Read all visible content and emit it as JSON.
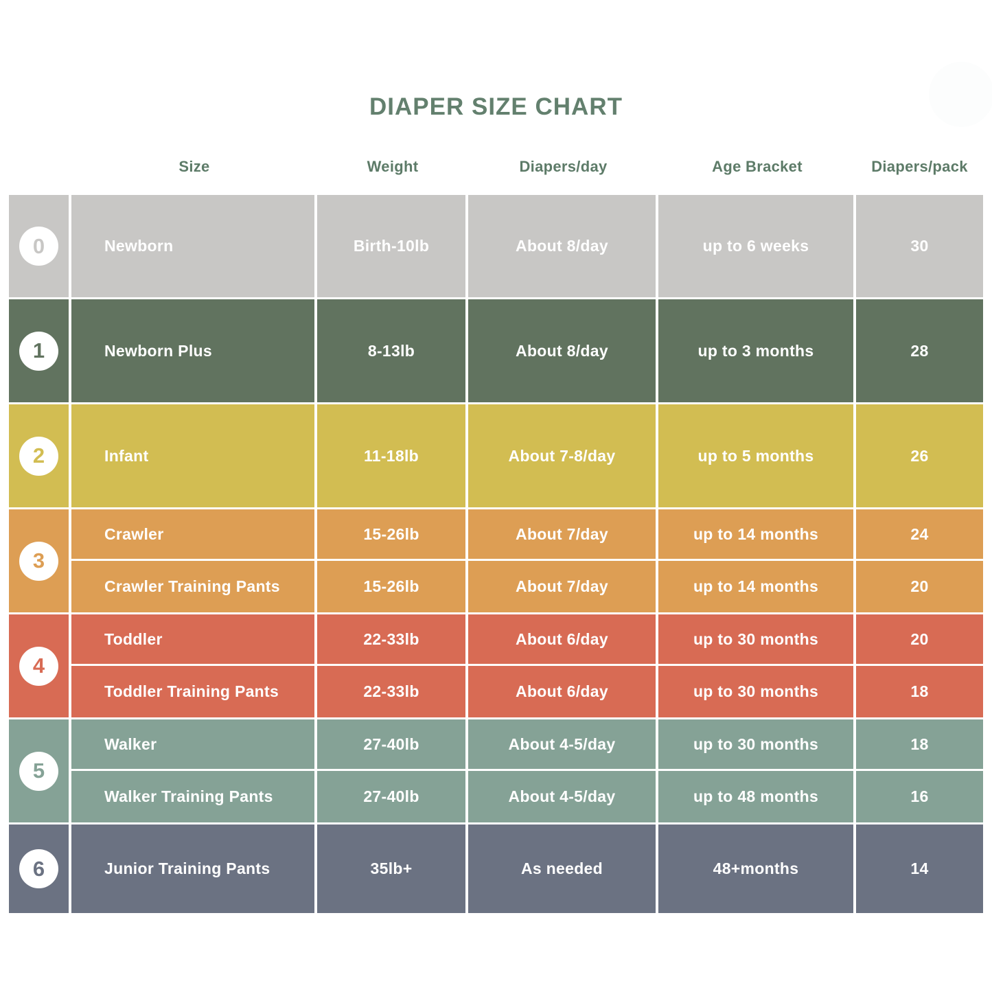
{
  "page": {
    "title": "DIAPER SIZE CHART",
    "title_color": "#63806e",
    "header_color": "#5d7b68",
    "background": "#ffffff",
    "corner_circle_color": "#fcfdfd"
  },
  "chart_data": {
    "type": "table",
    "title": "DIAPER SIZE CHART",
    "headers": [
      "Size",
      "Weight",
      "Diapers/day",
      "Age Bracket",
      "Diapers/pack"
    ],
    "groups": [
      {
        "size": "0",
        "color": "#c8c7c5",
        "rows": [
          {
            "name": "Newborn",
            "weight": "Birth-10lb",
            "per_day": "About 8/day",
            "age": "up to 6 weeks",
            "per_pack": "30"
          }
        ]
      },
      {
        "size": "1",
        "color": "#61735f",
        "rows": [
          {
            "name": "Newborn Plus",
            "weight": "8-13lb",
            "per_day": "About 8/day",
            "age": "up to 3 months",
            "per_pack": "28"
          }
        ]
      },
      {
        "size": "2",
        "color": "#d2bd52",
        "rows": [
          {
            "name": "Infant",
            "weight": "11-18lb",
            "per_day": "About 7-8/day",
            "age": "up to 5 months",
            "per_pack": "26"
          }
        ]
      },
      {
        "size": "3",
        "color": "#dd9e54",
        "rows": [
          {
            "name": "Crawler",
            "weight": "15-26lb",
            "per_day": "About 7/day",
            "age": "up to 14 months",
            "per_pack": "24"
          },
          {
            "name": "Crawler Training Pants",
            "weight": "15-26lb",
            "per_day": "About 7/day",
            "age": "up to 14 months",
            "per_pack": "20"
          }
        ]
      },
      {
        "size": "4",
        "color": "#d86b54",
        "rows": [
          {
            "name": "Toddler",
            "weight": "22-33lb",
            "per_day": "About 6/day",
            "age": "up to 30 months",
            "per_pack": "20"
          },
          {
            "name": "Toddler Training Pants",
            "weight": "22-33lb",
            "per_day": "About 6/day",
            "age": "up to 30 months",
            "per_pack": "18"
          }
        ]
      },
      {
        "size": "5",
        "color": "#85a296",
        "rows": [
          {
            "name": "Walker",
            "weight": "27-40lb",
            "per_day": "About 4-5/day",
            "age": "up to 30 months",
            "per_pack": "18"
          },
          {
            "name": "Walker Training Pants",
            "weight": "27-40lb",
            "per_day": "About 4-5/day",
            "age": "up to 48 months",
            "per_pack": "16"
          }
        ]
      },
      {
        "size": "6",
        "color": "#6b7282",
        "rows": [
          {
            "name": "Junior Training Pants",
            "weight": "35lb+",
            "per_day": "As needed",
            "age": "48+months",
            "per_pack": "14"
          }
        ]
      }
    ]
  }
}
